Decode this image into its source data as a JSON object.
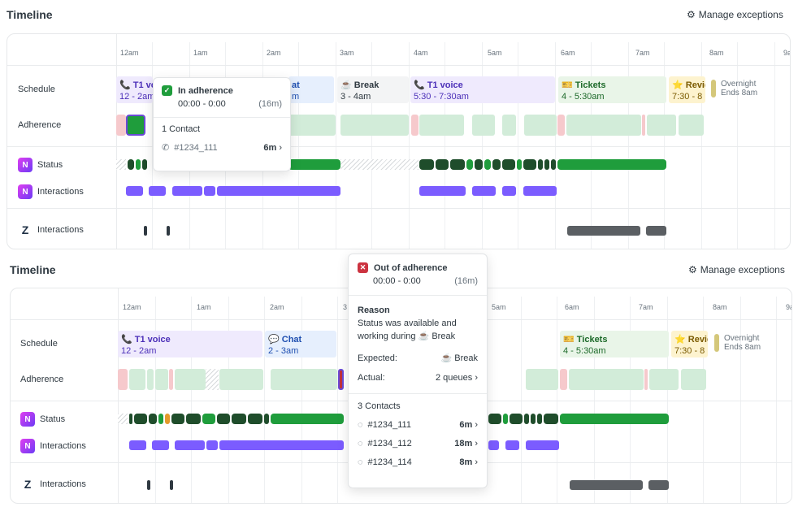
{
  "top": {
    "title": "Timeline",
    "manage_exceptions": "Manage exceptions",
    "ticks": [
      "12am",
      "1am",
      "2am",
      "3am",
      "4am",
      "5am",
      "6am",
      "7am",
      "8am",
      "9a"
    ],
    "rows": {
      "schedule": "Schedule",
      "adherence": "Adherence",
      "status": "Status",
      "interactions": "Interactions",
      "z_interactions": "Interactions"
    },
    "blocks": [
      {
        "title": "📞 T1 vo",
        "time": "12 - 2am"
      },
      {
        "title": "at",
        "time": "m"
      },
      {
        "title": "☕ Break",
        "time": "3 - 4am"
      },
      {
        "title": "📞 T1 voice",
        "time": "5:30 - 7:30am"
      },
      {
        "title": "🎫 Tickets",
        "time": "4 - 5:30am"
      },
      {
        "title": "⭐ Revie",
        "time": "7:30 - 8"
      }
    ],
    "overnight": {
      "label": "Overnight",
      "ends": "Ends 8am"
    },
    "popup": {
      "title": "In adherence",
      "time": "00:00 - 0:00",
      "duration": "(16m)",
      "contacts_label": "1 Contact",
      "contacts": [
        {
          "id": "#1234_111",
          "dur": "6m"
        }
      ]
    }
  },
  "bottom": {
    "title": "Timeline",
    "manage_exceptions": "Manage exceptions",
    "ticks": [
      "12am",
      "1am",
      "2am",
      "3",
      "5am",
      "6am",
      "7am",
      "8am",
      "9a"
    ],
    "rows": {
      "schedule": "Schedule",
      "adherence": "Adherence",
      "status": "Status",
      "interactions": "Interactions",
      "z_interactions": "Interactions"
    },
    "blocks": [
      {
        "title": "📞 T1 voice",
        "time": "12 - 2am"
      },
      {
        "title": "💬 Chat",
        "time": "2 - 3am"
      },
      {
        "title": "🎫 Tickets",
        "time": "4 - 5:30am"
      },
      {
        "title": "⭐ Revie",
        "time": "7:30 - 8"
      }
    ],
    "overnight": {
      "label": "Overnight",
      "ends": "Ends 8am"
    },
    "popup": {
      "title": "Out of adherence",
      "time": "00:00 - 0:00",
      "duration": "(16m)",
      "reason_label": "Reason",
      "reason_text_1": "Status was available and",
      "reason_text_2": "working during ☕ Break",
      "expected_label": "Expected:",
      "expected_value": "☕ Break",
      "actual_label": "Actual:",
      "actual_value": "2 queues",
      "contacts_label": "3 Contacts",
      "contacts": [
        {
          "id": "#1234_111",
          "dur": "6m"
        },
        {
          "id": "#1234_112",
          "dur": "18m"
        },
        {
          "id": "#1234_114",
          "dur": "8m"
        }
      ]
    }
  },
  "colors": {
    "voice_bg": "#efeafd",
    "voice_fg": "#4b2fb8",
    "break_bg": "#f3f4f5",
    "chat_bg": "#e6effd",
    "chat_fg": "#1f4fb0",
    "tickets_bg": "#e9f5e8",
    "tickets_fg": "#1d6a2a",
    "review_bg": "#fdf3cf",
    "review_fg": "#7a5a00",
    "in_adh": "#d2ecd9",
    "out_adh": "#f6c9cc",
    "status_green": "#1f9d3c",
    "status_dark": "#1f4d2b",
    "interactions": "#7b5cff"
  },
  "icons": {
    "manage": "gear-icon",
    "phone": "phone-icon",
    "check": "check-icon",
    "x": "x-icon",
    "zendesk": "zendesk-logo",
    "app": "app-logo"
  }
}
